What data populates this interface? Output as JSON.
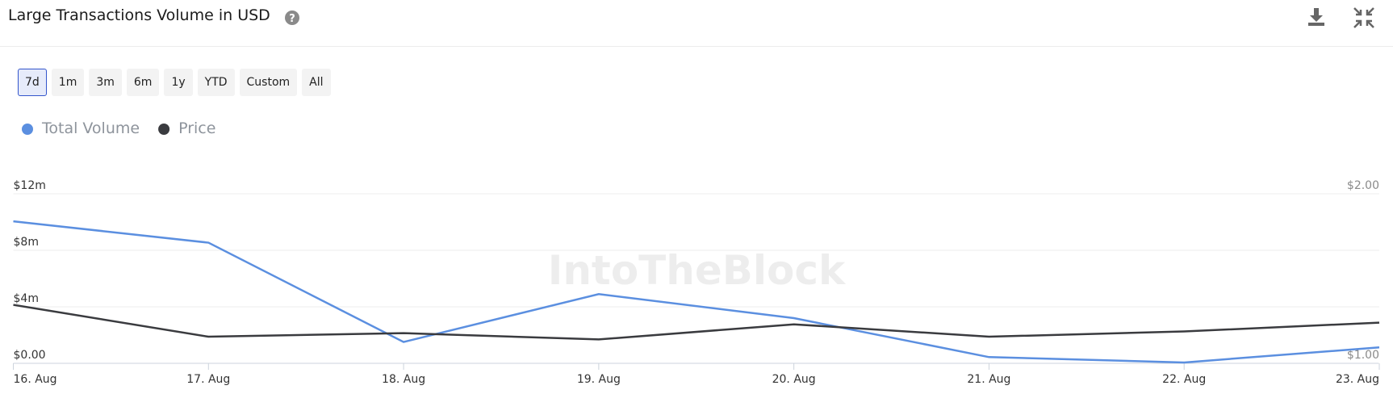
{
  "header": {
    "title": "Large Transactions Volume in USD"
  },
  "range_buttons": [
    "7d",
    "1m",
    "3m",
    "6m",
    "1y",
    "YTD",
    "Custom",
    "All"
  ],
  "watermark": "IntoTheBlock",
  "chart_data": {
    "type": "line",
    "categories": [
      "16. Aug",
      "17. Aug",
      "18. Aug",
      "19. Aug",
      "20. Aug",
      "21. Aug",
      "22. Aug",
      "23. Aug"
    ],
    "series": [
      {
        "name": "Total Volume",
        "color": "#5b8fe0",
        "values": [
          10050000,
          8540000,
          1510000,
          4900000,
          3200000,
          440000,
          60000,
          1130000
        ]
      },
      {
        "name": "Price",
        "color": "#3a3b3f",
        "axis": "y2",
        "values": [
          1.345,
          1.157,
          1.178,
          1.141,
          1.23,
          1.157,
          1.188,
          1.24
        ]
      }
    ],
    "ylim": [
      0,
      12000000
    ],
    "yticks": [
      {
        "value": 0,
        "label": "$0.00"
      },
      {
        "value": 4000000,
        "label": "$4m"
      },
      {
        "value": 8000000,
        "label": "$8m"
      },
      {
        "value": 12000000,
        "label": "$12m"
      }
    ],
    "y2lim": [
      1,
      2
    ],
    "y2ticks": [
      {
        "value": 1,
        "label": "$1.00"
      },
      {
        "value": 2,
        "label": "$2.00"
      }
    ],
    "grid": true,
    "legend": "top-left"
  }
}
